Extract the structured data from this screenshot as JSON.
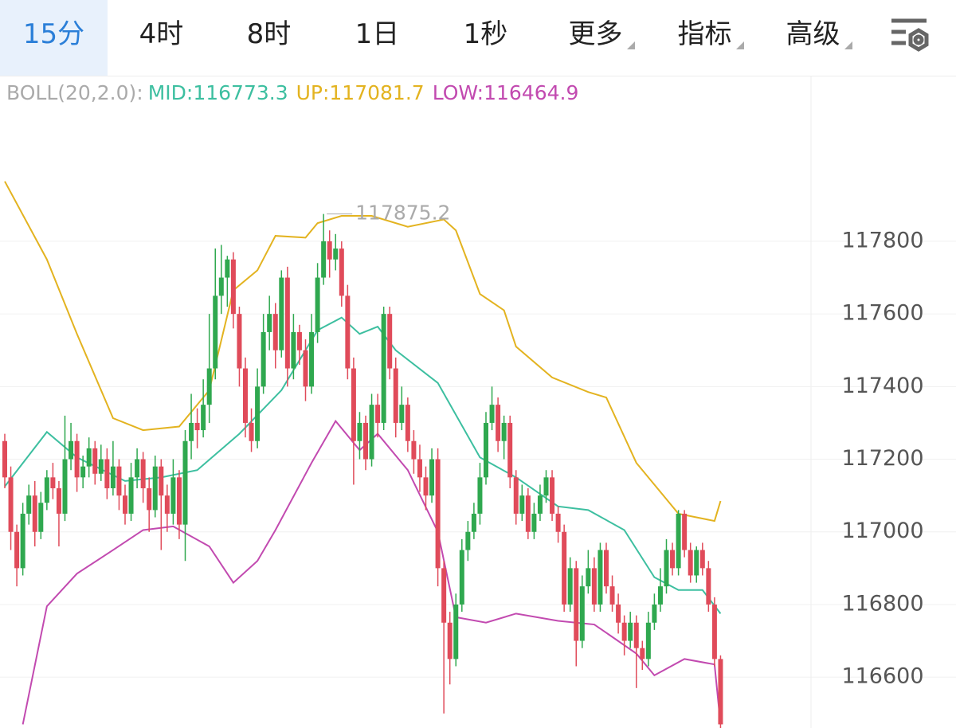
{
  "header": {
    "tabs": [
      "15分",
      "4时",
      "8时",
      "1日",
      "1秒"
    ],
    "active": 0,
    "menus": [
      "更多",
      "指标",
      "高级"
    ]
  },
  "chart_data": {
    "type": "candlestick",
    "indicator": {
      "label": "BOLL(20,2.0):",
      "items": [
        {
          "text": "MID:116773.3",
          "color": "#3dbfa0"
        },
        {
          "text": "UP:117081.7",
          "color": "#e3b320"
        },
        {
          "text": "LOW:116464.9",
          "color": "#c24ab0"
        }
      ]
    },
    "up_color": "#2fa84f",
    "down_color": "#e04b5a",
    "ylim": [
      116460,
      118245
    ],
    "yticks": [
      116600,
      116800,
      117000,
      117200,
      117400,
      117600,
      117800
    ],
    "grid": true,
    "high_marker": 117875.2,
    "high_marker_index": 53,
    "ohlc": [
      [
        117250,
        117270,
        117120,
        117150
      ],
      [
        117150,
        117180,
        116950,
        117000
      ],
      [
        117000,
        117020,
        116850,
        116900
      ],
      [
        116900,
        117080,
        116880,
        117050
      ],
      [
        117050,
        117130,
        117020,
        117100
      ],
      [
        117100,
        117140,
        116960,
        117000
      ],
      [
        117000,
        117110,
        116980,
        117080
      ],
      [
        117080,
        117170,
        117060,
        117150
      ],
      [
        117150,
        117190,
        117090,
        117120
      ],
      [
        117120,
        117140,
        116960,
        117050
      ],
      [
        117050,
        117320,
        117030,
        117200
      ],
      [
        117200,
        117300,
        117170,
        117250
      ],
      [
        117250,
        117270,
        117110,
        117150
      ],
      [
        117150,
        117210,
        117120,
        117180
      ],
      [
        117180,
        117260,
        117150,
        117230
      ],
      [
        117230,
        117250,
        117130,
        117160
      ],
      [
        117160,
        117240,
        117140,
        117200
      ],
      [
        117200,
        117230,
        117090,
        117120
      ],
      [
        117120,
        117250,
        117100,
        117180
      ],
      [
        117180,
        117200,
        117060,
        117100
      ],
      [
        117100,
        117130,
        117020,
        117050
      ],
      [
        117050,
        117190,
        117030,
        117150
      ],
      [
        117150,
        117230,
        117120,
        117200
      ],
      [
        117200,
        117220,
        117080,
        117120
      ],
      [
        117120,
        117150,
        117000,
        117060
      ],
      [
        117060,
        117210,
        117040,
        117180
      ],
      [
        117180,
        117200,
        116950,
        117100
      ],
      [
        117100,
        117130,
        117000,
        117050
      ],
      [
        117050,
        117200,
        117020,
        117150
      ],
      [
        117150,
        117170,
        116980,
        117020
      ],
      [
        117020,
        117280,
        116920,
        117250
      ],
      [
        117250,
        117380,
        117200,
        117300
      ],
      [
        117300,
        117340,
        117230,
        117280
      ],
      [
        117280,
        117420,
        117260,
        117350
      ],
      [
        117350,
        117600,
        117300,
        117450
      ],
      [
        117450,
        117780,
        117420,
        117650
      ],
      [
        117650,
        117790,
        117600,
        117700
      ],
      [
        117700,
        117760,
        117620,
        117750
      ],
      [
        117750,
        117770,
        117560,
        117600
      ],
      [
        117600,
        117620,
        117400,
        117450
      ],
      [
        117450,
        117480,
        117260,
        117300
      ],
      [
        117300,
        117340,
        117220,
        117250
      ],
      [
        117250,
        117450,
        117230,
        117400
      ],
      [
        117400,
        117600,
        117380,
        117550
      ],
      [
        117550,
        117650,
        117500,
        117600
      ],
      [
        117600,
        117630,
        117450,
        117500
      ],
      [
        117500,
        117720,
        117480,
        117700
      ],
      [
        117700,
        117730,
        117400,
        117450
      ],
      [
        117450,
        117600,
        117420,
        117550
      ],
      [
        117550,
        117570,
        117460,
        117500
      ],
      [
        117500,
        117530,
        117360,
        117400
      ],
      [
        117400,
        117600,
        117380,
        117550
      ],
      [
        117550,
        117740,
        117520,
        117700
      ],
      [
        117700,
        117875.2,
        117680,
        117800
      ],
      [
        117800,
        117830,
        117700,
        117750
      ],
      [
        117750,
        117820,
        117720,
        117780
      ],
      [
        117780,
        117800,
        117620,
        117650
      ],
      [
        117650,
        117680,
        117420,
        117450
      ],
      [
        117450,
        117480,
        117130,
        117250
      ],
      [
        117250,
        117330,
        117200,
        117300
      ],
      [
        117300,
        117320,
        117170,
        117200
      ],
      [
        117200,
        117380,
        117180,
        117350
      ],
      [
        117350,
        117380,
        117260,
        117300
      ],
      [
        117300,
        117620,
        117280,
        117600
      ],
      [
        117600,
        117620,
        117420,
        117450
      ],
      [
        117450,
        117480,
        117260,
        117300
      ],
      [
        117300,
        117400,
        117280,
        117350
      ],
      [
        117350,
        117370,
        117220,
        117250
      ],
      [
        117250,
        117280,
        117160,
        117200
      ],
      [
        117200,
        117240,
        117110,
        117150
      ],
      [
        117150,
        117180,
        117060,
        117100
      ],
      [
        117100,
        117230,
        117080,
        117200
      ],
      [
        117200,
        117230,
        116850,
        116900
      ],
      [
        116900,
        116920,
        116500,
        116750
      ],
      [
        116750,
        116780,
        116580,
        116650
      ],
      [
        116650,
        116830,
        116630,
        116800
      ],
      [
        116800,
        116980,
        116780,
        116950
      ],
      [
        116950,
        117030,
        116920,
        117000
      ],
      [
        117000,
        117080,
        116980,
        117050
      ],
      [
        117050,
        117190,
        117020,
        117150
      ],
      [
        117150,
        117330,
        117130,
        117300
      ],
      [
        117300,
        117400,
        117280,
        117350
      ],
      [
        117350,
        117370,
        117220,
        117250
      ],
      [
        117250,
        117320,
        117200,
        117300
      ],
      [
        117300,
        117320,
        117120,
        117150
      ],
      [
        117150,
        117170,
        117020,
        117050
      ],
      [
        117050,
        117130,
        117030,
        117100
      ],
      [
        117100,
        117120,
        116980,
        117000
      ],
      [
        117000,
        117080,
        116980,
        117050
      ],
      [
        117050,
        117130,
        117030,
        117100
      ],
      [
        117100,
        117170,
        117080,
        117150
      ],
      [
        117150,
        117170,
        117030,
        117050
      ],
      [
        117050,
        117070,
        116970,
        117000
      ],
      [
        117000,
        117020,
        116780,
        116800
      ],
      [
        116800,
        116930,
        116780,
        116900
      ],
      [
        116900,
        116920,
        116630,
        116700
      ],
      [
        116700,
        116880,
        116680,
        116850
      ],
      [
        116850,
        116950,
        116830,
        116900
      ],
      [
        116900,
        116930,
        116780,
        116800
      ],
      [
        116800,
        116970,
        116780,
        116950
      ],
      [
        116950,
        116970,
        116830,
        116850
      ],
      [
        116850,
        116880,
        116780,
        116800
      ],
      [
        116800,
        116830,
        116720,
        116750
      ],
      [
        116750,
        116770,
        116660,
        116700
      ],
      [
        116700,
        116780,
        116680,
        116750
      ],
      [
        116750,
        116770,
        116570,
        116680
      ],
      [
        116680,
        116700,
        116620,
        116650
      ],
      [
        116650,
        116780,
        116630,
        116750
      ],
      [
        116750,
        116830,
        116730,
        116800
      ],
      [
        116800,
        116900,
        116780,
        116850
      ],
      [
        116850,
        116980,
        116830,
        116950
      ],
      [
        116950,
        116970,
        116880,
        116900
      ],
      [
        116900,
        117060,
        116880,
        117050
      ],
      [
        117050,
        117060,
        116930,
        116950
      ],
      [
        116950,
        116970,
        116860,
        116880
      ],
      [
        116880,
        116960,
        116860,
        116950
      ],
      [
        116950,
        116970,
        116880,
        116900
      ],
      [
        116900,
        116920,
        116780,
        116800
      ],
      [
        116800,
        116820,
        116630,
        116650
      ],
      [
        116650,
        116660,
        116460,
        116470
      ]
    ],
    "bands": [
      {
        "color": "#e3b320",
        "x": [
          0,
          7,
          12,
          18,
          23,
          29,
          34,
          38,
          42,
          45,
          50,
          52,
          56,
          61,
          67,
          73,
          75,
          79,
          83,
          85,
          91,
          97,
          100,
          105,
          112,
          118,
          119
        ],
        "values": [
          117965,
          117750,
          117545,
          117313,
          117280,
          117290,
          117390,
          117665,
          117720,
          117815,
          117810,
          117850,
          117870,
          117870,
          117840,
          117860,
          117830,
          117655,
          117610,
          117510,
          117425,
          117385,
          117370,
          117190,
          117050,
          117030,
          117085
        ]
      },
      {
        "color": "#3dbfa0",
        "x": [
          0,
          7,
          12,
          20,
          26,
          32,
          39,
          46,
          52,
          56,
          59,
          62,
          65,
          72,
          79,
          85,
          92,
          97,
          103,
          108,
          112,
          116,
          119
        ],
        "values": [
          117125,
          117275,
          117205,
          117140,
          117150,
          117170,
          117270,
          117390,
          117555,
          117590,
          117545,
          117565,
          117500,
          117410,
          117205,
          117150,
          117070,
          117060,
          117005,
          116875,
          116840,
          116840,
          116775
        ]
      },
      {
        "color": "#c24ab0",
        "x": [
          3,
          7,
          12,
          18,
          23,
          28,
          34,
          38,
          42,
          45,
          51,
          55,
          59,
          62,
          67,
          72,
          75,
          80,
          85,
          92,
          98,
          105,
          108,
          113,
          118,
          119
        ],
        "values": [
          116470,
          116795,
          116885,
          116950,
          117005,
          117015,
          116960,
          116860,
          116920,
          117005,
          117190,
          117305,
          117225,
          117270,
          117170,
          117000,
          116765,
          116750,
          116775,
          116755,
          116745,
          116665,
          116605,
          116650,
          116635,
          116470
        ]
      }
    ]
  }
}
